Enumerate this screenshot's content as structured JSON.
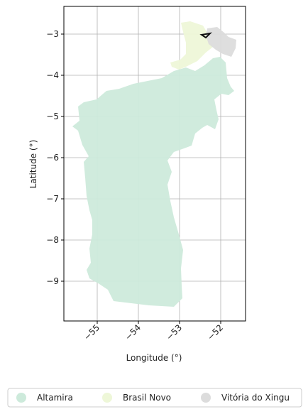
{
  "map": {
    "xlabel": "Longitude (°)",
    "ylabel": "Latitude (°)",
    "x_ticks": [
      "−55",
      "−54",
      "−53",
      "−52"
    ],
    "y_ticks": [
      "−3",
      "−4",
      "−5",
      "−6",
      "−7",
      "−8",
      "−9"
    ],
    "grid": true,
    "regions": [
      {
        "name": "Altamira",
        "color": "#cdeadb"
      },
      {
        "name": "Brasil Novo",
        "color": "#eef7d8"
      },
      {
        "name": "Vitória do Xingu",
        "color": "#dcdcdc"
      }
    ],
    "legend": {
      "position": "bottom",
      "items": [
        "Altamira",
        "Brasil Novo",
        "Vitória do Xingu"
      ]
    }
  }
}
